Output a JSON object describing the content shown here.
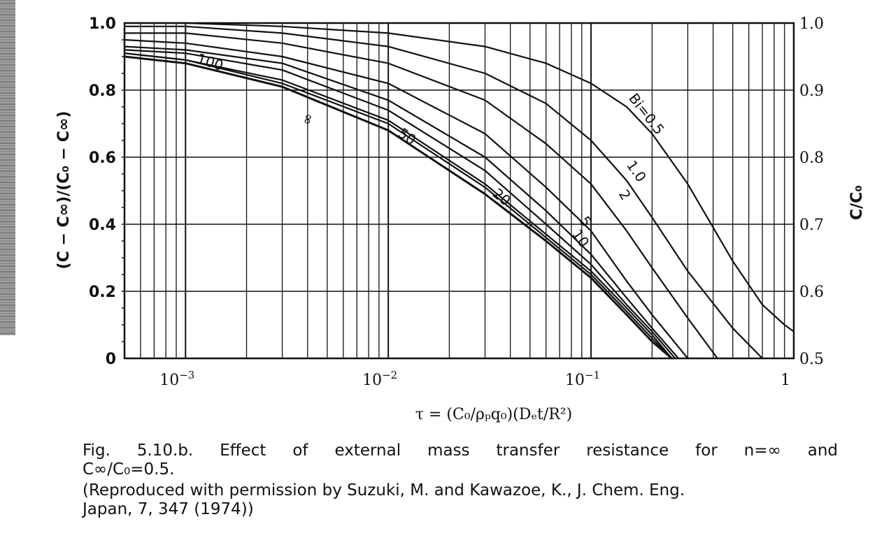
{
  "chart_data": {
    "type": "line",
    "xlabel": "τ = (C₀/ρₚq₀)(Dₑt/R²)",
    "ylabel_left": "(C − C∞)/(C₀ − C∞)",
    "ylabel_right": "C/C₀",
    "x_scale": "log",
    "xlim": [
      0.0005,
      1
    ],
    "ylim": [
      0,
      1
    ],
    "right_ylim": [
      0.5,
      1.0
    ],
    "grid": true,
    "x_ticks": [
      {
        "value": 0.001,
        "base": "10",
        "exp": "−3"
      },
      {
        "value": 0.01,
        "base": "10",
        "exp": "−2"
      },
      {
        "value": 0.1,
        "base": "10",
        "exp": "−1"
      },
      {
        "value": 1,
        "label": "1"
      }
    ],
    "y_ticks_left": [
      "0",
      "0.2",
      "0.4",
      "0.6",
      "0.8",
      "1.0"
    ],
    "y_ticks_right": [
      "0.5",
      "0.6",
      "0.7",
      "0.8",
      "0.9",
      "1.0"
    ],
    "series": [
      {
        "name": "Bi=0.5",
        "x": [
          0.0005,
          0.001,
          0.003,
          0.01,
          0.03,
          0.06,
          0.1,
          0.15,
          0.2,
          0.3,
          0.5,
          0.7,
          0.9,
          1.0
        ],
        "y": [
          1.0,
          1.0,
          0.99,
          0.97,
          0.93,
          0.88,
          0.82,
          0.75,
          0.67,
          0.52,
          0.29,
          0.16,
          0.1,
          0.08
        ]
      },
      {
        "name": "1.0",
        "x": [
          0.0005,
          0.001,
          0.003,
          0.01,
          0.03,
          0.06,
          0.1,
          0.15,
          0.2,
          0.3,
          0.5,
          0.7
        ],
        "y": [
          0.99,
          0.99,
          0.97,
          0.93,
          0.85,
          0.76,
          0.65,
          0.53,
          0.42,
          0.26,
          0.09,
          0.0
        ]
      },
      {
        "name": "2",
        "x": [
          0.0005,
          0.001,
          0.003,
          0.01,
          0.03,
          0.06,
          0.1,
          0.15,
          0.2,
          0.3,
          0.42
        ],
        "y": [
          0.97,
          0.97,
          0.94,
          0.88,
          0.77,
          0.64,
          0.52,
          0.38,
          0.27,
          0.12,
          0.0
        ]
      },
      {
        "name": "5",
        "x": [
          0.0005,
          0.001,
          0.003,
          0.01,
          0.03,
          0.06,
          0.1,
          0.15,
          0.2,
          0.3
        ],
        "y": [
          0.95,
          0.94,
          0.9,
          0.82,
          0.67,
          0.51,
          0.38,
          0.23,
          0.13,
          0.0
        ]
      },
      {
        "name": "10",
        "x": [
          0.0005,
          0.001,
          0.003,
          0.01,
          0.03,
          0.06,
          0.1,
          0.15,
          0.2,
          0.27
        ],
        "y": [
          0.93,
          0.92,
          0.88,
          0.77,
          0.6,
          0.44,
          0.31,
          0.18,
          0.09,
          0.0
        ]
      },
      {
        "name": "20",
        "x": [
          0.0005,
          0.001,
          0.003,
          0.01,
          0.03,
          0.06,
          0.1,
          0.15,
          0.2,
          0.26
        ],
        "y": [
          0.92,
          0.91,
          0.86,
          0.74,
          0.56,
          0.4,
          0.28,
          0.16,
          0.08,
          0.0
        ]
      },
      {
        "name": "50",
        "x": [
          0.0005,
          0.001,
          0.003,
          0.01,
          0.03,
          0.06,
          0.1,
          0.15,
          0.2,
          0.25
        ],
        "y": [
          0.91,
          0.89,
          0.83,
          0.71,
          0.52,
          0.37,
          0.26,
          0.15,
          0.07,
          0.0
        ]
      },
      {
        "name": "100",
        "x": [
          0.0005,
          0.001,
          0.003,
          0.01,
          0.03,
          0.06,
          0.1,
          0.15,
          0.2,
          0.25
        ],
        "y": [
          0.91,
          0.89,
          0.82,
          0.7,
          0.51,
          0.36,
          0.25,
          0.14,
          0.06,
          0.0
        ]
      },
      {
        "name": "∞",
        "x": [
          0.0005,
          0.001,
          0.003,
          0.01,
          0.03,
          0.06,
          0.1,
          0.15,
          0.2,
          0.25
        ],
        "y": [
          0.9,
          0.88,
          0.81,
          0.68,
          0.49,
          0.35,
          0.24,
          0.13,
          0.05,
          0.0
        ]
      }
    ],
    "annotations": [
      {
        "text": "Bi=0.5",
        "x": 0.18,
        "y": 0.72
      },
      {
        "text": "1.0",
        "x": 0.16,
        "y": 0.55
      },
      {
        "text": "2",
        "x": 0.14,
        "y": 0.48
      },
      {
        "text": "5",
        "x": 0.09,
        "y": 0.4
      },
      {
        "text": "10",
        "x": 0.085,
        "y": 0.35
      },
      {
        "text": "20",
        "x": 0.035,
        "y": 0.47
      },
      {
        "text": "50",
        "x": 0.012,
        "y": 0.65
      },
      {
        "text": "100",
        "x": 0.0013,
        "y": 0.87
      },
      {
        "text": "∞",
        "x": 0.0042,
        "y": 0.71
      }
    ]
  },
  "caption": {
    "line1": "Fig. 5.10.b.  Effect of external mass transfer resistance for n=∞ and",
    "line2": "C∞/C₀=0.5.",
    "line3": "(Reproduced with permission by Suzuki, M. and Kawazoe, K., J. Chem. Eng.",
    "line4": "Japan, 7, 347 (1974))"
  }
}
